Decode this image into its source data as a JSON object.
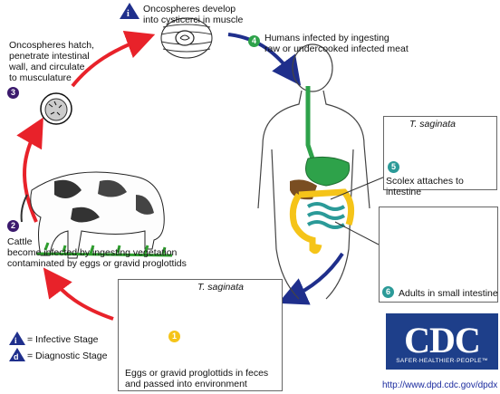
{
  "stages": {
    "s1": {
      "number": "i",
      "text": "Oncospheres develop\ninto cysticerci in muscle"
    },
    "s2": {
      "number": "2",
      "text": "Cattle\nbecome infected by ingesting vegetation\ncontaminated by eggs or gravid proglottids"
    },
    "s3": {
      "number": "3",
      "text": "Oncospheres hatch,\npenetrate intestinal\nwall, and circulate\nto musculature"
    },
    "s4": {
      "number": "4",
      "text": "Humans infected by ingesting\nraw or undercooked infected meat"
    },
    "s5": {
      "number": "5",
      "species": "T. saginata",
      "text": "Scolex attaches to intestine"
    },
    "s6": {
      "number": "6",
      "text": "Adults in small intestine"
    },
    "s7": {
      "number": "1",
      "species": "T. saginata",
      "text": "Eggs or gravid proglottids in feces\nand passed into environment",
      "diag_letter": "d"
    }
  },
  "legend": {
    "infective_letter": "i",
    "infective_text": "= Infective Stage",
    "diagnostic_letter": "d",
    "diagnostic_text": "= Diagnostic Stage"
  },
  "branding": {
    "logo_text": "CDC",
    "tagline": "SAFER·HEALTHIER·PEOPLE™",
    "url": "http://www.dpd.cdc.gov/dpdx"
  },
  "colors": {
    "red_arrow": "#e8222a",
    "blue_arrow": "#1f2f8c",
    "stage_purple": "#3b1a6d",
    "stage_teal": "#2b9a98",
    "stage_yellow": "#f5c419",
    "infective_blue": "#1f2f8c",
    "cdc_blue": "#1e3f8a"
  }
}
